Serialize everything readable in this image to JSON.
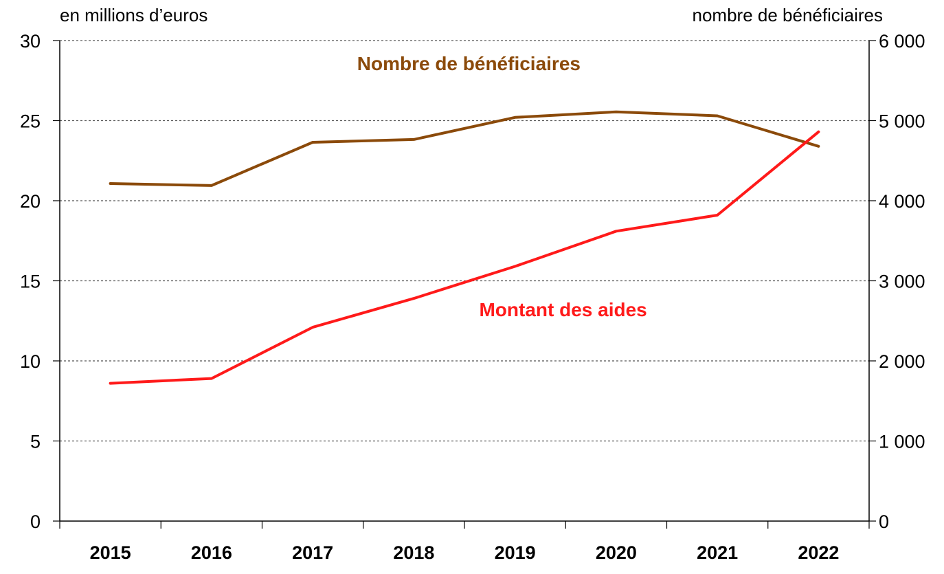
{
  "chart_data": {
    "type": "line",
    "categories": [
      "2015",
      "2016",
      "2017",
      "2018",
      "2019",
      "2020",
      "2021",
      "2022"
    ],
    "y_left": {
      "label": "en millions d’euros",
      "range": [
        0,
        30
      ],
      "ticks": [
        "0",
        "5",
        "10",
        "15",
        "20",
        "25",
        "30"
      ]
    },
    "y_right": {
      "label": "nombre de bénéficiaires",
      "range": [
        0,
        6000
      ],
      "ticks": [
        "0",
        "1 000",
        "2 000",
        "3 000",
        "4 000",
        "5 000",
        "6 000"
      ]
    },
    "series": [
      {
        "name": "Nombre de bénéficiaires",
        "axis": "right",
        "color": "#8B4A0A",
        "values": [
          4215,
          4190,
          4730,
          4765,
          5040,
          5110,
          5060,
          4680
        ]
      },
      {
        "name": "Montant des aides",
        "axis": "left",
        "color": "#FF1A1A",
        "values": [
          8.6,
          8.9,
          12.1,
          13.9,
          15.9,
          18.1,
          19.1,
          24.3
        ]
      }
    ],
    "grid": "horizontal dashed",
    "legend": "inline labels"
  }
}
